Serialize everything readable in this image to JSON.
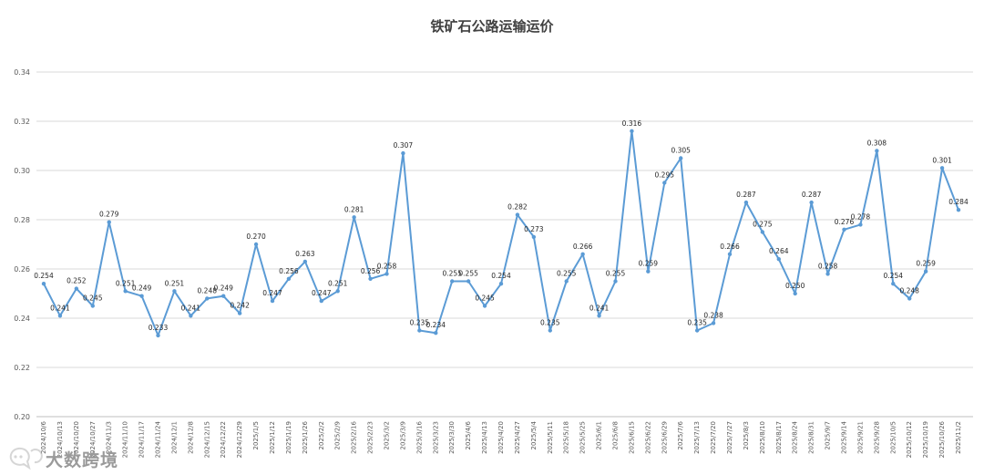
{
  "chart_data": {
    "type": "line",
    "title": "铁矿石公路运输运价",
    "ylim": [
      0.2,
      0.34
    ],
    "yticks": [
      "0.20",
      "0.22",
      "0.24",
      "0.26",
      "0.28",
      "0.30",
      "0.32",
      "0.34"
    ],
    "grid": true,
    "line_color": "#5B9BD5",
    "categories": [
      "2024/10/6",
      "2024/10/13",
      "2024/10/20",
      "2024/10/27",
      "2024/11/3",
      "2024/11/10",
      "2024/11/17",
      "2024/11/24",
      "2024/12/1",
      "2024/12/8",
      "2024/12/15",
      "2024/12/22",
      "2024/12/29",
      "2025/1/5",
      "2025/1/12",
      "2025/1/19",
      "2025/1/26",
      "2025/2/2",
      "2025/2/9",
      "2025/2/16",
      "2025/2/23",
      "2025/3/2",
      "2025/3/9",
      "2025/3/16",
      "2025/3/23",
      "2025/3/30",
      "2025/4/6",
      "2025/4/13",
      "2025/4/20",
      "2025/4/27",
      "2025/5/4",
      "2025/5/11",
      "2025/5/18",
      "2025/5/25",
      "2025/6/1",
      "2025/6/8",
      "2025/6/15",
      "2025/6/22",
      "2025/6/29",
      "2025/7/6",
      "2025/7/13",
      "2025/7/20",
      "2025/7/27",
      "2025/8/3",
      "2025/8/10",
      "2025/8/17",
      "2025/8/24",
      "2025/8/31",
      "2025/9/7",
      "2025/9/14",
      "2025/9/21",
      "2025/9/28",
      "2025/10/5",
      "2025/10/12",
      "2025/10/19",
      "2025/10/26",
      "2025/11/2"
    ],
    "values": [
      0.254,
      0.241,
      0.252,
      0.245,
      0.279,
      0.251,
      0.249,
      0.233,
      0.251,
      0.241,
      0.248,
      0.249,
      0.242,
      0.27,
      0.247,
      0.256,
      0.263,
      0.247,
      0.251,
      0.281,
      0.256,
      0.258,
      0.307,
      0.235,
      0.234,
      0.255,
      0.255,
      0.245,
      0.254,
      0.282,
      0.273,
      0.235,
      0.255,
      0.266,
      0.241,
      0.255,
      0.316,
      0.259,
      0.295,
      0.305,
      0.235,
      0.238,
      0.266,
      0.287,
      0.275,
      0.264,
      0.25,
      0.287,
      0.258,
      0.276,
      0.278,
      0.308,
      0.254,
      0.248,
      0.259,
      0.301,
      0.284
    ],
    "data_labels": [
      "0.254",
      "0.241",
      "0.252",
      "0.245",
      "0.279",
      "0.251",
      "0.249",
      "0.233",
      "0.251",
      "0.241",
      "0.248",
      "0.249",
      "0.242",
      "0.270",
      "0.247",
      "0.256",
      "0.263",
      "0.247",
      "0.251",
      "0.281",
      "0.256",
      "0.258",
      "0.307",
      "0.235",
      "0.234",
      "0.255",
      "0.255",
      "0.245",
      "0.254",
      "0.282",
      "0.273",
      "0.235",
      "0.255",
      "0.266",
      "0.241",
      "0.255",
      "0.316",
      "0.259",
      "0.295",
      "0.305",
      "0.235",
      "0.238",
      "0.266",
      "0.287",
      "0.275",
      "0.264",
      "0.250",
      "0.287",
      "0.258",
      "0.276",
      "0.278",
      "0.308",
      "0.254",
      "0.248",
      "0.259",
      "0.301",
      "0.284"
    ]
  },
  "watermark": {
    "text": "大数跨境",
    "icon": "chat-bubble-logo-icon"
  }
}
